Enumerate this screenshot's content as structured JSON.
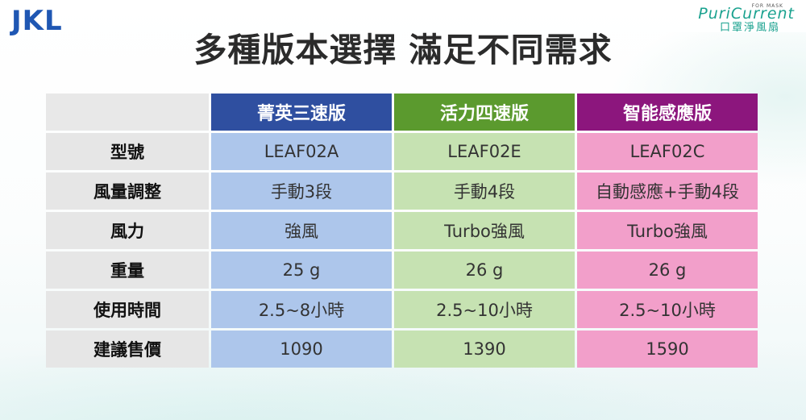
{
  "header": {
    "left_logo": "JKL",
    "right_logo_brand": "PuriCurrent",
    "right_logo_small": "FOR MASK",
    "right_logo_sub": "口罩淨風扇",
    "title": "多種版本選擇 滿足不同需求"
  },
  "table": {
    "columns": [
      "菁英三速版",
      "活力四速版",
      "智能感應版"
    ],
    "rows": [
      {
        "label": "型號",
        "values": [
          "LEAF02A",
          "LEAF02E",
          "LEAF02C"
        ]
      },
      {
        "label": "風量調整",
        "values": [
          "手動3段",
          "手動4段",
          "自動感應+手動4段"
        ]
      },
      {
        "label": "風力",
        "values": [
          "強風",
          "Turbo強風",
          "Turbo強風"
        ]
      },
      {
        "label": "重量",
        "values": [
          "25 g",
          "26 g",
          "26 g"
        ]
      },
      {
        "label": "使用時間",
        "values": [
          "2.5~8小時",
          "2.5~10小時",
          "2.5~10小時"
        ]
      },
      {
        "label": "建議售價",
        "values": [
          "1090",
          "1390",
          "1590"
        ]
      }
    ]
  },
  "colors": {
    "col1_header": "#2f4fa0",
    "col2_header": "#5b9a2e",
    "col3_header": "#8c167d",
    "col1_cell": "#adc6eb",
    "col2_cell": "#c6e2b2",
    "col3_cell": "#f29fca"
  }
}
